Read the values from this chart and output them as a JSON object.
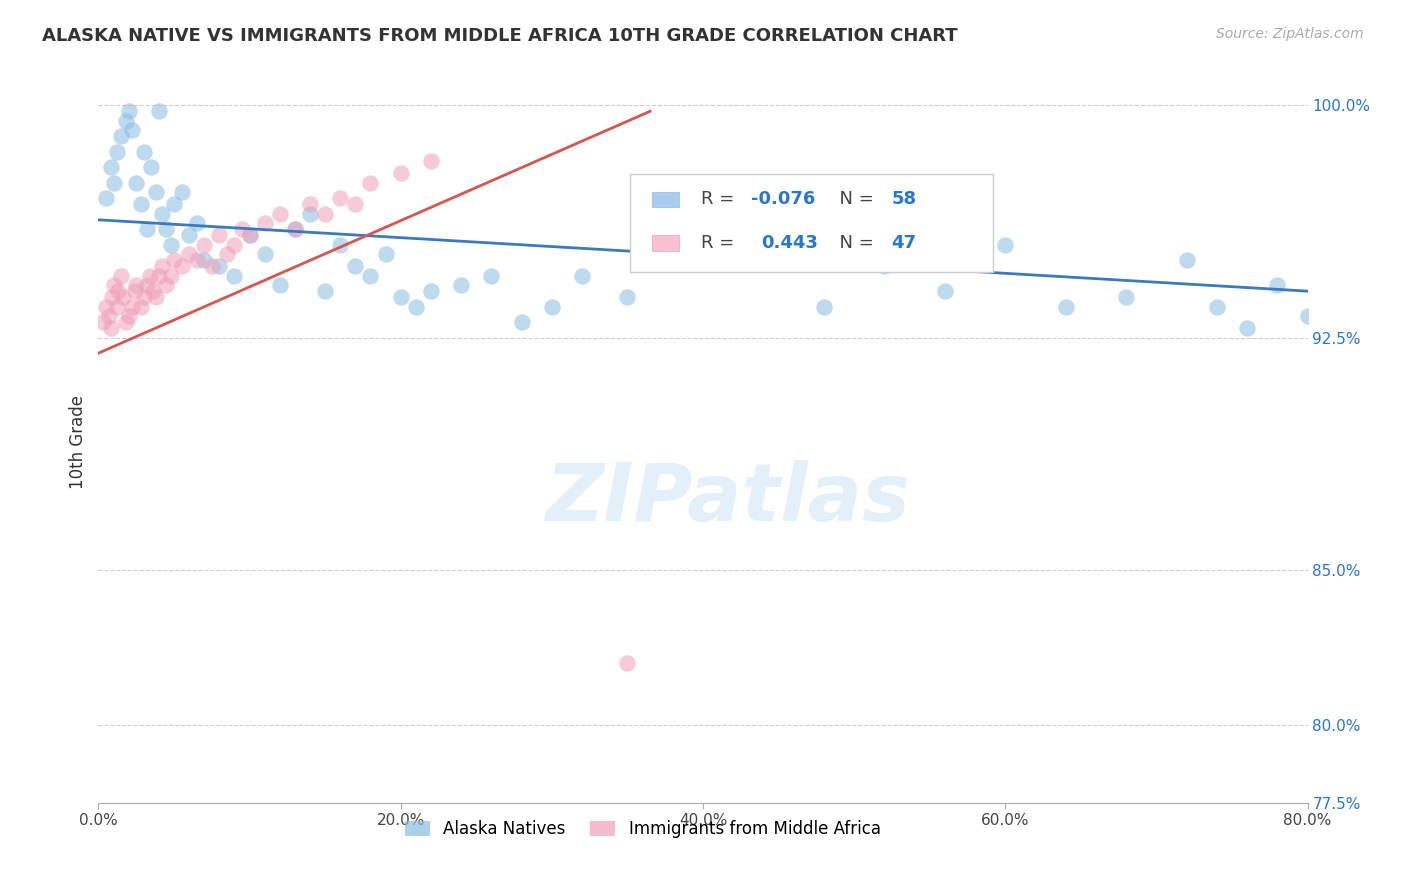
{
  "title": "ALASKA NATIVE VS IMMIGRANTS FROM MIDDLE AFRICA 10TH GRADE CORRELATION CHART",
  "source": "Source: ZipAtlas.com",
  "ylabel_label": "10th Grade",
  "xmin": 0.0,
  "xmax": 0.8,
  "ymin": 0.775,
  "ymax": 1.008,
  "legend_r_blue": "-0.076",
  "legend_n_blue": "58",
  "legend_r_pink": "0.443",
  "legend_n_pink": "47",
  "blue_color": "#88bde0",
  "pink_color": "#f0a0b8",
  "trendline_blue": "#3a7abf",
  "trendline_pink": "#d9534f",
  "blue_x": [
    0.005,
    0.008,
    0.01,
    0.012,
    0.015,
    0.018,
    0.02,
    0.022,
    0.025,
    0.028,
    0.03,
    0.032,
    0.035,
    0.038,
    0.04,
    0.042,
    0.045,
    0.048,
    0.05,
    0.055,
    0.06,
    0.065,
    0.07,
    0.08,
    0.09,
    0.1,
    0.11,
    0.12,
    0.13,
    0.14,
    0.15,
    0.16,
    0.17,
    0.18,
    0.19,
    0.2,
    0.21,
    0.22,
    0.24,
    0.26,
    0.28,
    0.3,
    0.32,
    0.35,
    0.38,
    0.42,
    0.45,
    0.48,
    0.52,
    0.56,
    0.6,
    0.64,
    0.68,
    0.72,
    0.74,
    0.76,
    0.78,
    0.8
  ],
  "blue_y": [
    0.97,
    0.98,
    0.975,
    0.985,
    0.99,
    0.995,
    0.998,
    0.992,
    0.975,
    0.968,
    0.985,
    0.96,
    0.98,
    0.972,
    0.998,
    0.965,
    0.96,
    0.955,
    0.968,
    0.972,
    0.958,
    0.962,
    0.95,
    0.948,
    0.945,
    0.958,
    0.952,
    0.942,
    0.96,
    0.965,
    0.94,
    0.955,
    0.948,
    0.945,
    0.952,
    0.938,
    0.935,
    0.94,
    0.942,
    0.945,
    0.93,
    0.935,
    0.945,
    0.938,
    0.96,
    0.96,
    0.952,
    0.935,
    0.948,
    0.94,
    0.955,
    0.935,
    0.938,
    0.95,
    0.935,
    0.928,
    0.942,
    0.932
  ],
  "pink_x": [
    0.003,
    0.005,
    0.007,
    0.008,
    0.009,
    0.01,
    0.012,
    0.013,
    0.015,
    0.016,
    0.018,
    0.02,
    0.022,
    0.024,
    0.025,
    0.028,
    0.03,
    0.032,
    0.034,
    0.036,
    0.038,
    0.04,
    0.042,
    0.045,
    0.048,
    0.05,
    0.055,
    0.06,
    0.065,
    0.07,
    0.075,
    0.08,
    0.085,
    0.09,
    0.095,
    0.1,
    0.11,
    0.12,
    0.13,
    0.14,
    0.15,
    0.16,
    0.17,
    0.18,
    0.2,
    0.22,
    0.35
  ],
  "pink_y": [
    0.93,
    0.935,
    0.932,
    0.928,
    0.938,
    0.942,
    0.935,
    0.94,
    0.945,
    0.938,
    0.93,
    0.932,
    0.935,
    0.94,
    0.942,
    0.935,
    0.938,
    0.942,
    0.945,
    0.94,
    0.938,
    0.945,
    0.948,
    0.942,
    0.945,
    0.95,
    0.948,
    0.952,
    0.95,
    0.955,
    0.948,
    0.958,
    0.952,
    0.955,
    0.96,
    0.958,
    0.962,
    0.965,
    0.96,
    0.968,
    0.965,
    0.97,
    0.968,
    0.975,
    0.978,
    0.982,
    0.82
  ],
  "blue_trend_x": [
    0.0,
    0.8
  ],
  "blue_trend_y": [
    0.963,
    0.94
  ],
  "pink_trend_x": [
    0.0,
    0.365
  ],
  "pink_trend_y": [
    0.92,
    0.998
  ]
}
